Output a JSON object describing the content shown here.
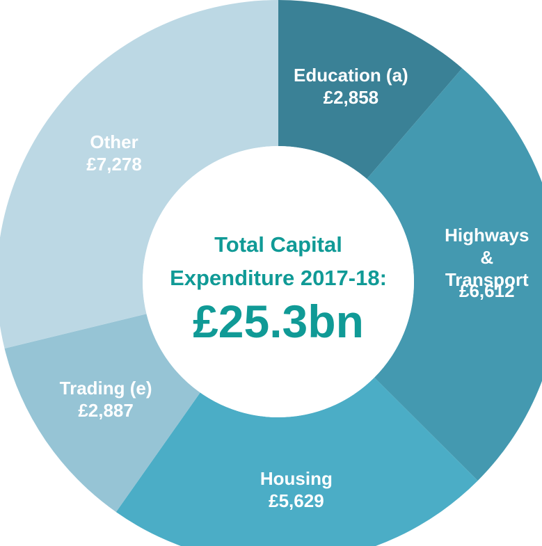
{
  "chart_data": {
    "type": "donut",
    "title": "Total Capital\nExpenditure 2017-18:",
    "total": "£25.3bn",
    "categories": [
      "Education (a)",
      "Highways &\nTransport",
      "Housing",
      "Trading (e)",
      "Other"
    ],
    "values": [
      2858,
      6612,
      5629,
      2887,
      7278
    ],
    "value_labels": [
      "£2,858",
      "£6,612",
      "£5,629",
      "£2,887",
      "£7,278"
    ],
    "colors": [
      "#3a8196",
      "#4499b0",
      "#4badc6",
      "#96c4d5",
      "#bcd8e4"
    ]
  }
}
